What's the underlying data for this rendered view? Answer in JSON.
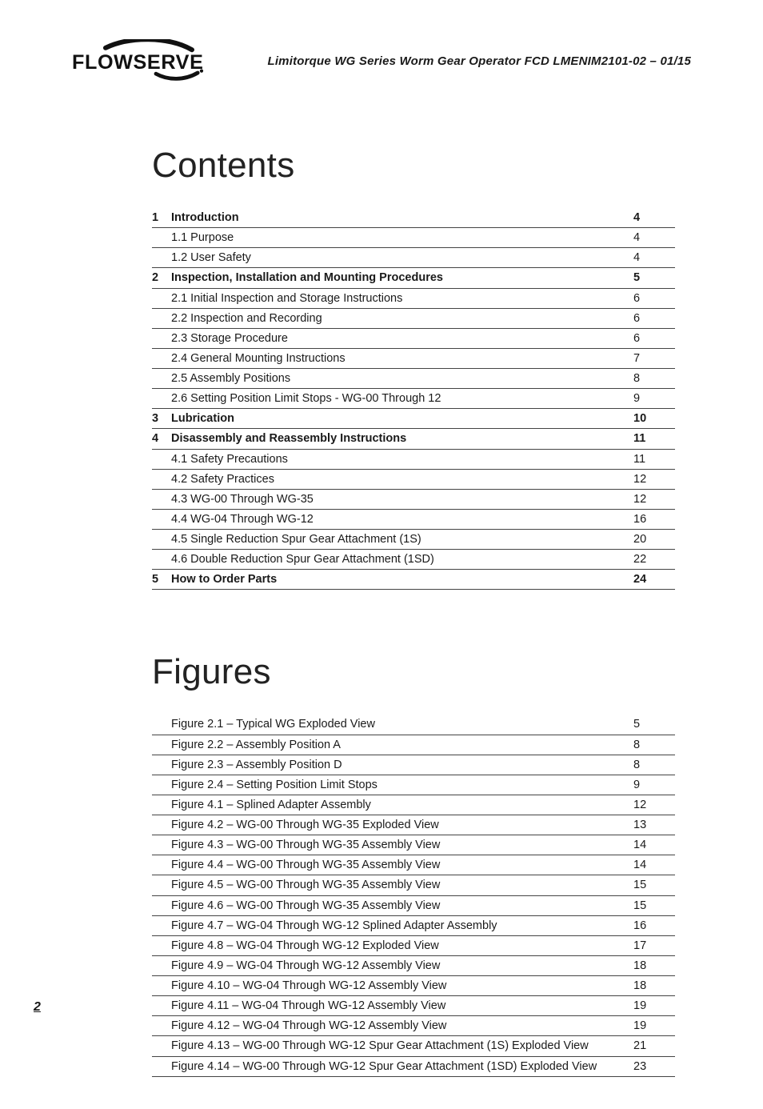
{
  "header": {
    "logo_text": "FLOWSERVE",
    "doc_title": "Limitorque WG Series Worm Gear Operator   FCD LMENIM2101-02 – 01/15"
  },
  "contents": {
    "heading": "Contents",
    "rows": [
      {
        "num": "1",
        "title": "Introduction",
        "page": "4",
        "bold": true
      },
      {
        "num": "",
        "title": "1.1 Purpose",
        "page": "4",
        "bold": false
      },
      {
        "num": "",
        "title": "1.2 User Safety",
        "page": "4",
        "bold": false
      },
      {
        "num": "2",
        "title": "Inspection, Installation and Mounting Procedures",
        "page": "5",
        "bold": true
      },
      {
        "num": "",
        "title": "2.1 Initial Inspection and Storage Instructions",
        "page": "6",
        "bold": false
      },
      {
        "num": "",
        "title": "2.2 Inspection and Recording",
        "page": "6",
        "bold": false
      },
      {
        "num": "",
        "title": "2.3 Storage Procedure",
        "page": "6",
        "bold": false
      },
      {
        "num": "",
        "title": "2.4 General Mounting Instructions",
        "page": "7",
        "bold": false
      },
      {
        "num": "",
        "title": "2.5 Assembly Positions",
        "page": "8",
        "bold": false
      },
      {
        "num": "",
        "title": "2.6 Setting Position Limit Stops - WG-00 Through 12",
        "page": "9",
        "bold": false
      },
      {
        "num": "3",
        "title": "Lubrication",
        "page": "10",
        "bold": true
      },
      {
        "num": "4",
        "title": "Disassembly and Reassembly Instructions",
        "page": "11",
        "bold": true
      },
      {
        "num": "",
        "title": "4.1 Safety Precautions",
        "page": "11",
        "bold": false
      },
      {
        "num": "",
        "title": "4.2 Safety Practices",
        "page": "12",
        "bold": false
      },
      {
        "num": "",
        "title": "4.3 WG-00 Through WG-35",
        "page": "12",
        "bold": false
      },
      {
        "num": "",
        "title": "4.4 WG-04 Through WG-12",
        "page": "16",
        "bold": false
      },
      {
        "num": "",
        "title": "4.5 Single Reduction Spur Gear Attachment (1S)",
        "page": "20",
        "bold": false
      },
      {
        "num": "",
        "title": "4.6 Double Reduction Spur Gear Attachment (1SD)",
        "page": "22",
        "bold": false
      },
      {
        "num": "5",
        "title": "How to Order Parts",
        "page": "24",
        "bold": true
      }
    ]
  },
  "figures": {
    "heading": "Figures",
    "rows": [
      {
        "title": "Figure 2.1 – Typical WG Exploded View",
        "page": "5"
      },
      {
        "title": "Figure 2.2 – Assembly Position A",
        "page": "8"
      },
      {
        "title": "Figure 2.3 – Assembly Position D",
        "page": "8"
      },
      {
        "title": "Figure 2.4 – Setting Position Limit Stops",
        "page": "9"
      },
      {
        "title": "Figure 4.1 – Splined Adapter Assembly",
        "page": "12"
      },
      {
        "title": "Figure 4.2 – WG-00 Through WG-35 Exploded View",
        "page": "13"
      },
      {
        "title": "Figure 4.3 – WG-00 Through WG-35 Assembly View",
        "page": "14"
      },
      {
        "title": "Figure 4.4 – WG-00 Through WG-35 Assembly View",
        "page": "14"
      },
      {
        "title": "Figure 4.5 – WG-00 Through WG-35 Assembly View",
        "page": "15"
      },
      {
        "title": "Figure 4.6 – WG-00 Through WG-35 Assembly View",
        "page": "15"
      },
      {
        "title": "Figure 4.7 – WG-04 Through WG-12 Splined Adapter Assembly",
        "page": "16"
      },
      {
        "title": "Figure 4.8 – WG-04 Through WG-12 Exploded View",
        "page": "17"
      },
      {
        "title": "Figure 4.9 – WG-04 Through WG-12 Assembly View",
        "page": "18"
      },
      {
        "title": "Figure 4.10 – WG-04 Through WG-12 Assembly View",
        "page": "18"
      },
      {
        "title": "Figure 4.11 – WG-04 Through WG-12 Assembly View",
        "page": "19"
      },
      {
        "title": "Figure 4.12 – WG-04 Through WG-12 Assembly View",
        "page": "19"
      },
      {
        "title": "Figure 4.13 – WG-00 Through WG-12 Spur Gear Attachment (1S) Exploded View",
        "page": "21"
      },
      {
        "title": "Figure 4.14 – WG-00 Through WG-12 Spur Gear Attachment (1SD) Exploded View",
        "page": "23"
      }
    ]
  },
  "page_number": "2"
}
